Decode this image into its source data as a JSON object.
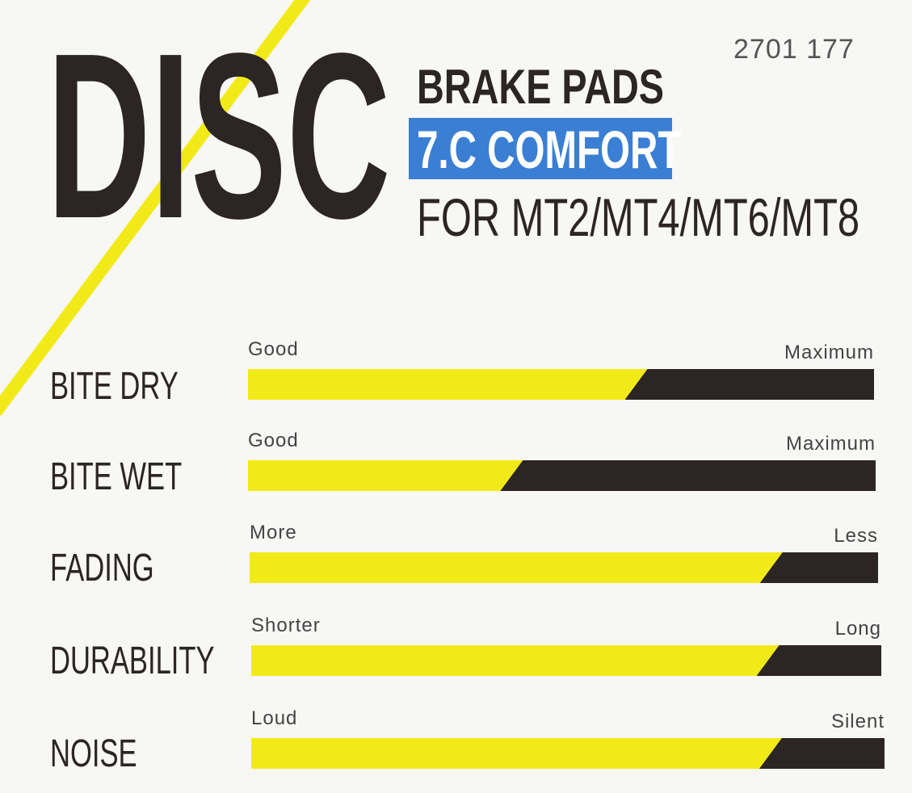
{
  "header": {
    "title": "DISC",
    "product_line": "BRAKE PADS",
    "compound": "7.C COMFORT",
    "compatibility": "FOR MT2/MT4/MT6/MT8",
    "article_number": "2701 177"
  },
  "colors": {
    "accent_yellow": "#f2ea18",
    "bar_dark": "#2b2523",
    "compound_blue": "#3a7fd4"
  },
  "ratings": [
    {
      "label": "BITE DRY",
      "min_label": "Good",
      "max_label": "Maximum",
      "level_percent": 62
    },
    {
      "label": "BITE WET",
      "min_label": "Good",
      "max_label": "Maximum",
      "level_percent": 42
    },
    {
      "label": "FADING",
      "min_label": "More",
      "max_label": "Less",
      "level_percent": 83
    },
    {
      "label": "DURABILITY",
      "min_label": "Shorter",
      "max_label": "Long",
      "level_percent": 82
    },
    {
      "label": "NOISE",
      "min_label": "Loud",
      "max_label": "Silent",
      "level_percent": 82
    }
  ]
}
